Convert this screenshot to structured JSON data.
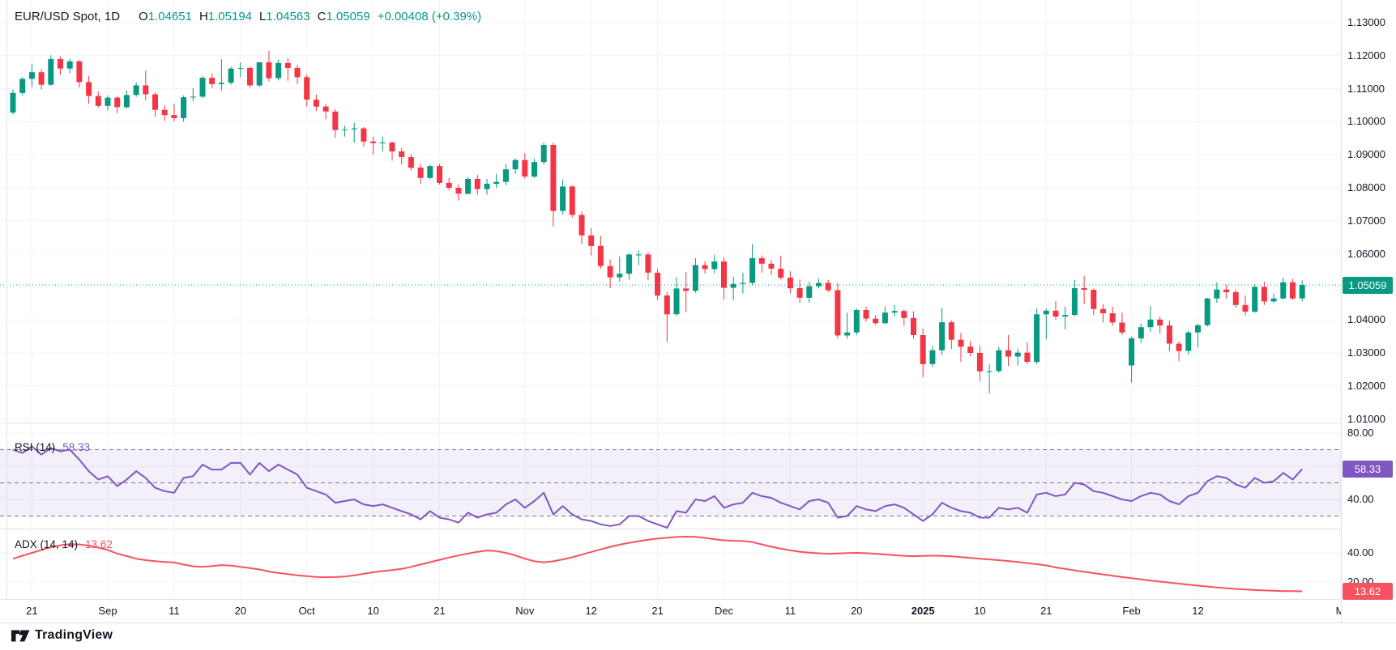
{
  "header": {
    "title": "EUR/USD Spot, 1D",
    "ohlc": [
      {
        "k": "O",
        "v": "1.04651"
      },
      {
        "k": "H",
        "v": "1.05194"
      },
      {
        "k": "L",
        "v": "1.04563"
      },
      {
        "k": "C",
        "v": "1.05059"
      }
    ],
    "change": "+0.00408 (+0.39%)"
  },
  "colors": {
    "up": "#089981",
    "down": "#F23645",
    "rsi_line": "#7E57C2",
    "adx_line": "#F7525F",
    "grid": "#f0f3fa",
    "band_fill": "rgba(126,87,194,0.09)",
    "dashed": "#787b86",
    "separator": "#e0e3eb",
    "axis_text": "#131722"
  },
  "price_axis": {
    "ticks": [
      "1.13000",
      "1.12000",
      "1.11000",
      "1.10000",
      "1.09000",
      "1.08000",
      "1.07000",
      "1.06000",
      "1.05000",
      "1.04000",
      "1.03000",
      "1.02000",
      "1.01000"
    ],
    "badge": "1.05059"
  },
  "watermark": "TradingView",
  "chart_data": {
    "type": "candlestick",
    "symbol": "EUR/USD Spot",
    "interval": "1D",
    "price_range": {
      "axis_top": 1.13,
      "axis_bottom": 1.01
    },
    "last_close": 1.05059,
    "candles": [
      [
        1.1028,
        1.1098,
        1.1022,
        1.1087
      ],
      [
        1.1087,
        1.1135,
        1.108,
        1.113
      ],
      [
        1.113,
        1.1174,
        1.1105,
        1.115
      ],
      [
        1.115,
        1.116,
        1.1098,
        1.1112
      ],
      [
        1.1112,
        1.1201,
        1.1109,
        1.119
      ],
      [
        1.119,
        1.1198,
        1.1142,
        1.1161
      ],
      [
        1.1161,
        1.119,
        1.1147,
        1.1183
      ],
      [
        1.1183,
        1.1186,
        1.1104,
        1.112
      ],
      [
        1.112,
        1.1139,
        1.1055,
        1.1078
      ],
      [
        1.1078,
        1.1092,
        1.1043,
        1.1048
      ],
      [
        1.1048,
        1.108,
        1.1034,
        1.1073
      ],
      [
        1.1073,
        1.1078,
        1.1026,
        1.1044
      ],
      [
        1.1044,
        1.1095,
        1.104,
        1.1081
      ],
      [
        1.1081,
        1.1119,
        1.1075,
        1.111
      ],
      [
        1.111,
        1.1155,
        1.1065,
        1.1083
      ],
      [
        1.1083,
        1.109,
        1.1015,
        1.1036
      ],
      [
        1.1036,
        1.105,
        1.1002,
        1.102
      ],
      [
        1.102,
        1.1055,
        1.1001,
        1.1011
      ],
      [
        1.1011,
        1.108,
        1.1001,
        1.1074
      ],
      [
        1.1074,
        1.1102,
        1.1063,
        1.1076
      ],
      [
        1.1076,
        1.1138,
        1.1071,
        1.1133
      ],
      [
        1.1133,
        1.1146,
        1.1102,
        1.1114
      ],
      [
        1.1114,
        1.1189,
        1.1095,
        1.1118
      ],
      [
        1.1118,
        1.1167,
        1.1112,
        1.1161
      ],
      [
        1.1161,
        1.118,
        1.1135,
        1.1163
      ],
      [
        1.1163,
        1.1167,
        1.1103,
        1.111
      ],
      [
        1.111,
        1.1181,
        1.1106,
        1.118
      ],
      [
        1.118,
        1.1214,
        1.1122,
        1.1132
      ],
      [
        1.1132,
        1.1188,
        1.1125,
        1.1178
      ],
      [
        1.1178,
        1.1193,
        1.1124,
        1.1163
      ],
      [
        1.1163,
        1.1172,
        1.1113,
        1.1135
      ],
      [
        1.1135,
        1.1143,
        1.1046,
        1.1067
      ],
      [
        1.1067,
        1.1082,
        1.1033,
        1.1046
      ],
      [
        1.1046,
        1.1054,
        1.1008,
        1.1031
      ],
      [
        1.1031,
        1.1038,
        1.0951,
        1.0975
      ],
      [
        1.0975,
        1.0988,
        1.0955,
        1.0977
      ],
      [
        1.0977,
        1.0996,
        1.0936,
        1.098
      ],
      [
        1.098,
        1.0984,
        1.0925,
        1.094
      ],
      [
        1.094,
        1.0955,
        1.09,
        1.0935
      ],
      [
        1.0935,
        1.0955,
        1.091,
        1.0937
      ],
      [
        1.0937,
        1.094,
        1.0882,
        1.091
      ],
      [
        1.091,
        1.092,
        1.0871,
        1.0893
      ],
      [
        1.0893,
        1.0902,
        1.0853,
        1.0861
      ],
      [
        1.0861,
        1.0873,
        1.0811,
        1.083
      ],
      [
        1.083,
        1.087,
        1.0826,
        1.0866
      ],
      [
        1.0866,
        1.0872,
        1.081,
        1.0815
      ],
      [
        1.0815,
        1.083,
        1.0792,
        1.08
      ],
      [
        1.08,
        1.081,
        1.0761,
        1.0782
      ],
      [
        1.0782,
        1.0832,
        1.078,
        1.0827
      ],
      [
        1.0827,
        1.0839,
        1.0779,
        1.0796
      ],
      [
        1.0796,
        1.0827,
        1.078,
        1.0812
      ],
      [
        1.0812,
        1.0842,
        1.0799,
        1.0818
      ],
      [
        1.0818,
        1.0871,
        1.0808,
        1.0856
      ],
      [
        1.0856,
        1.0888,
        1.0842,
        1.0884
      ],
      [
        1.0884,
        1.0905,
        1.0828,
        1.0834
      ],
      [
        1.0834,
        1.0888,
        1.083,
        1.0878
      ],
      [
        1.0878,
        1.0937,
        1.087,
        1.093
      ],
      [
        1.093,
        1.0937,
        1.0683,
        1.073
      ],
      [
        1.073,
        1.0825,
        1.0719,
        1.0804
      ],
      [
        1.0804,
        1.0807,
        1.071,
        1.0718
      ],
      [
        1.0718,
        1.0728,
        1.0629,
        1.0656
      ],
      [
        1.0656,
        1.0678,
        1.0595,
        1.0624
      ],
      [
        1.0624,
        1.0655,
        1.0555,
        1.0563
      ],
      [
        1.0563,
        1.0583,
        1.0496,
        1.0529
      ],
      [
        1.0529,
        1.0592,
        1.0516,
        1.054
      ],
      [
        1.054,
        1.0601,
        1.0522,
        1.0598
      ],
      [
        1.0598,
        1.061,
        1.0565,
        1.0598
      ],
      [
        1.0598,
        1.0605,
        1.052,
        1.0543
      ],
      [
        1.0543,
        1.0555,
        1.0461,
        1.0474
      ],
      [
        1.0474,
        1.0484,
        1.0333,
        1.0417
      ],
      [
        1.0417,
        1.053,
        1.0411,
        1.0495
      ],
      [
        1.0495,
        1.0545,
        1.0424,
        1.0488
      ],
      [
        1.0488,
        1.0587,
        1.0482,
        1.0566
      ],
      [
        1.0566,
        1.0578,
        1.0541,
        1.0554
      ],
      [
        1.0554,
        1.0597,
        1.0541,
        1.0577
      ],
      [
        1.0577,
        1.0589,
        1.0461,
        1.0497
      ],
      [
        1.0497,
        1.0531,
        1.046,
        1.0509
      ],
      [
        1.0509,
        1.0543,
        1.048,
        1.0512
      ],
      [
        1.0512,
        1.0629,
        1.0505,
        1.0587
      ],
      [
        1.0587,
        1.0595,
        1.0543,
        1.057
      ],
      [
        1.057,
        1.0581,
        1.0536,
        1.0555
      ],
      [
        1.0555,
        1.0594,
        1.0522,
        1.0528
      ],
      [
        1.0528,
        1.0547,
        1.048,
        1.0496
      ],
      [
        1.0496,
        1.0522,
        1.0452,
        1.0467
      ],
      [
        1.0467,
        1.0515,
        1.0452,
        1.0502
      ],
      [
        1.0502,
        1.0525,
        1.0495,
        1.0512
      ],
      [
        1.0512,
        1.0521,
        1.0483,
        1.049
      ],
      [
        1.049,
        1.0512,
        1.0344,
        1.0353
      ],
      [
        1.0353,
        1.0422,
        1.0343,
        1.0362
      ],
      [
        1.0362,
        1.0435,
        1.0354,
        1.043
      ],
      [
        1.043,
        1.044,
        1.0395,
        1.0404
      ],
      [
        1.0404,
        1.0415,
        1.0385,
        1.039
      ],
      [
        1.039,
        1.0441,
        1.0388,
        1.0422
      ],
      [
        1.0422,
        1.0445,
        1.0411,
        1.0427
      ],
      [
        1.0427,
        1.0432,
        1.0383,
        1.0406
      ],
      [
        1.0406,
        1.0426,
        1.0343,
        1.0354
      ],
      [
        1.0354,
        1.0374,
        1.0226,
        1.0266
      ],
      [
        1.0266,
        1.0321,
        1.0258,
        1.0308
      ],
      [
        1.0308,
        1.0437,
        1.0294,
        1.0393
      ],
      [
        1.0393,
        1.0398,
        1.0312,
        1.034
      ],
      [
        1.034,
        1.0361,
        1.0273,
        1.0319
      ],
      [
        1.0319,
        1.0337,
        1.029,
        1.03
      ],
      [
        1.03,
        1.0321,
        1.0215,
        1.0244
      ],
      [
        1.0244,
        1.0266,
        1.0177,
        1.0245
      ],
      [
        1.0245,
        1.0319,
        1.024,
        1.0308
      ],
      [
        1.0308,
        1.0354,
        1.026,
        1.0289
      ],
      [
        1.0289,
        1.0313,
        1.0262,
        1.0301
      ],
      [
        1.0301,
        1.0332,
        1.0266,
        1.0273
      ],
      [
        1.0273,
        1.0434,
        1.0266,
        1.0417
      ],
      [
        1.0417,
        1.0435,
        1.0341,
        1.0428
      ],
      [
        1.0428,
        1.0457,
        1.04,
        1.041
      ],
      [
        1.041,
        1.044,
        1.0371,
        1.0415
      ],
      [
        1.0415,
        1.0521,
        1.0411,
        1.0496
      ],
      [
        1.0496,
        1.0533,
        1.0448,
        1.0491
      ],
      [
        1.0491,
        1.0495,
        1.0415,
        1.0433
      ],
      [
        1.0433,
        1.0448,
        1.0392,
        1.042
      ],
      [
        1.042,
        1.044,
        1.0382,
        1.0392
      ],
      [
        1.0392,
        1.0421,
        1.0354,
        1.0362
      ],
      [
        1.0262,
        1.035,
        1.021,
        1.0344
      ],
      [
        1.0344,
        1.0389,
        1.0331,
        1.0378
      ],
      [
        1.0378,
        1.0442,
        1.0364,
        1.0401
      ],
      [
        1.0401,
        1.041,
        1.0359,
        1.0383
      ],
      [
        1.0383,
        1.0398,
        1.0305,
        1.0328
      ],
      [
        1.0328,
        1.0335,
        1.0275,
        1.0306
      ],
      [
        1.0306,
        1.0367,
        1.0294,
        1.0362
      ],
      [
        1.0362,
        1.0388,
        1.0317,
        1.0384
      ],
      [
        1.0384,
        1.0467,
        1.038,
        1.0465
      ],
      [
        1.0465,
        1.0514,
        1.0452,
        1.0492
      ],
      [
        1.0492,
        1.0506,
        1.0465,
        1.0484
      ],
      [
        1.0484,
        1.0491,
        1.0436,
        1.0445
      ],
      [
        1.0445,
        1.0474,
        1.0413,
        1.0425
      ],
      [
        1.0425,
        1.0508,
        1.0421,
        1.05
      ],
      [
        1.05,
        1.0516,
        1.0445,
        1.0456
      ],
      [
        1.0456,
        1.048,
        1.0451,
        1.0465
      ],
      [
        1.0465,
        1.0528,
        1.0461,
        1.0514
      ],
      [
        1.0514,
        1.0524,
        1.0461,
        1.0465
      ],
      [
        1.04651,
        1.05194,
        1.04563,
        1.05059
      ]
    ],
    "rsi": {
      "label": "RSI (14)",
      "current": "58.33",
      "upper_band": 70,
      "middle_band": 50,
      "lower_band": 30,
      "axis_ticks": [
        "80.00",
        "40.00"
      ],
      "grid_levels": [
        80,
        60,
        40
      ],
      "values": [
        70,
        68,
        72,
        67,
        71,
        69,
        70,
        64,
        57,
        52,
        54,
        48,
        52,
        57,
        53,
        47,
        45,
        44,
        53,
        54,
        61,
        58,
        58,
        62,
        62,
        55,
        62,
        57,
        61,
        58,
        55,
        47,
        45,
        43,
        38,
        39,
        40,
        37,
        36,
        37,
        35,
        33,
        31,
        28,
        33,
        29,
        28,
        26,
        32,
        29,
        31,
        32,
        37,
        40,
        35,
        39,
        44,
        31,
        36,
        31,
        28,
        27,
        25,
        24,
        25,
        30,
        30,
        27,
        25,
        23,
        33,
        32,
        40,
        39,
        42,
        35,
        37,
        38,
        44,
        42,
        41,
        38,
        36,
        34,
        39,
        40,
        38,
        29,
        30,
        36,
        34,
        33,
        36,
        37,
        35,
        31,
        27,
        31,
        38,
        35,
        33,
        32,
        29,
        29,
        35,
        34,
        35,
        32,
        43,
        44,
        42,
        43,
        50,
        49,
        45,
        44,
        42,
        40,
        39,
        42,
        44,
        43,
        39,
        37,
        42,
        44,
        51,
        54,
        53,
        49,
        47,
        53,
        50,
        51,
        56,
        52,
        58.33
      ]
    },
    "adx": {
      "label": "ADX (14, 14)",
      "current": "13.62",
      "axis_ticks": [
        "40.00",
        "20.00"
      ],
      "grid_levels": [
        40,
        20
      ],
      "values": [
        36,
        38,
        40,
        42,
        43.8,
        45.2,
        46,
        45.8,
        45,
        43.6,
        42,
        39.5,
        37.8,
        36,
        35,
        34.3,
        33.8,
        33.4,
        32,
        30.8,
        30.4,
        30.9,
        31.6,
        31.2,
        30.4,
        29.6,
        28.6,
        27.2,
        26.2,
        25.4,
        24.6,
        24,
        23.5,
        23.3,
        23.4,
        23.8,
        24.6,
        25.6,
        26.7,
        27.5,
        28.2,
        29,
        30.4,
        32,
        33.6,
        35.2,
        36.8,
        38.2,
        39.5,
        40.7,
        41.6,
        41.2,
        40,
        38.2,
        36,
        34.2,
        33.5,
        34.2,
        35.5,
        37,
        38.8,
        40.6,
        42.4,
        44.1,
        45.6,
        46.9,
        48,
        49,
        49.8,
        50.4,
        50.9,
        51.1,
        51,
        50.3,
        49.4,
        48.6,
        48.3,
        48.2,
        47.4,
        45.8,
        44.2,
        42.9,
        41.7,
        40.8,
        40.1,
        39.7,
        39.4,
        39.6,
        39.9,
        40,
        39.8,
        39.4,
        38.9,
        38.4,
        38,
        37.7,
        37.9,
        38.1,
        38,
        37.6,
        37.1,
        36.5,
        36,
        35.5,
        35,
        34.4,
        33.7,
        33,
        32.2,
        31.4,
        30,
        29,
        28,
        27,
        26.1,
        25.2,
        24.3,
        23.4,
        22.6,
        21.8,
        21,
        20.3,
        19.6,
        18.9,
        18.2,
        17.5,
        16.9,
        16.3,
        15.8,
        15.3,
        14.9,
        14.5,
        14.2,
        14,
        13.8,
        13.7,
        13.62
      ]
    },
    "time_labels": [
      {
        "t": "21",
        "i": 2
      },
      {
        "t": "Sep",
        "i": 10
      },
      {
        "t": "11",
        "i": 17
      },
      {
        "t": "20",
        "i": 24
      },
      {
        "t": "Oct",
        "i": 31
      },
      {
        "t": "10",
        "i": 38
      },
      {
        "t": "21",
        "i": 45
      },
      {
        "t": "Nov",
        "i": 54
      },
      {
        "t": "12",
        "i": 61
      },
      {
        "t": "21",
        "i": 68
      },
      {
        "t": "Dec",
        "i": 75
      },
      {
        "t": "11",
        "i": 82
      },
      {
        "t": "20",
        "i": 89
      },
      {
        "t": "2025",
        "i": 96,
        "bold": true
      },
      {
        "t": "10",
        "i": 102
      },
      {
        "t": "21",
        "i": 109
      },
      {
        "t": "Feb",
        "i": 118
      },
      {
        "t": "12",
        "i": 125
      },
      {
        "t": "M",
        "i": 140
      }
    ]
  }
}
